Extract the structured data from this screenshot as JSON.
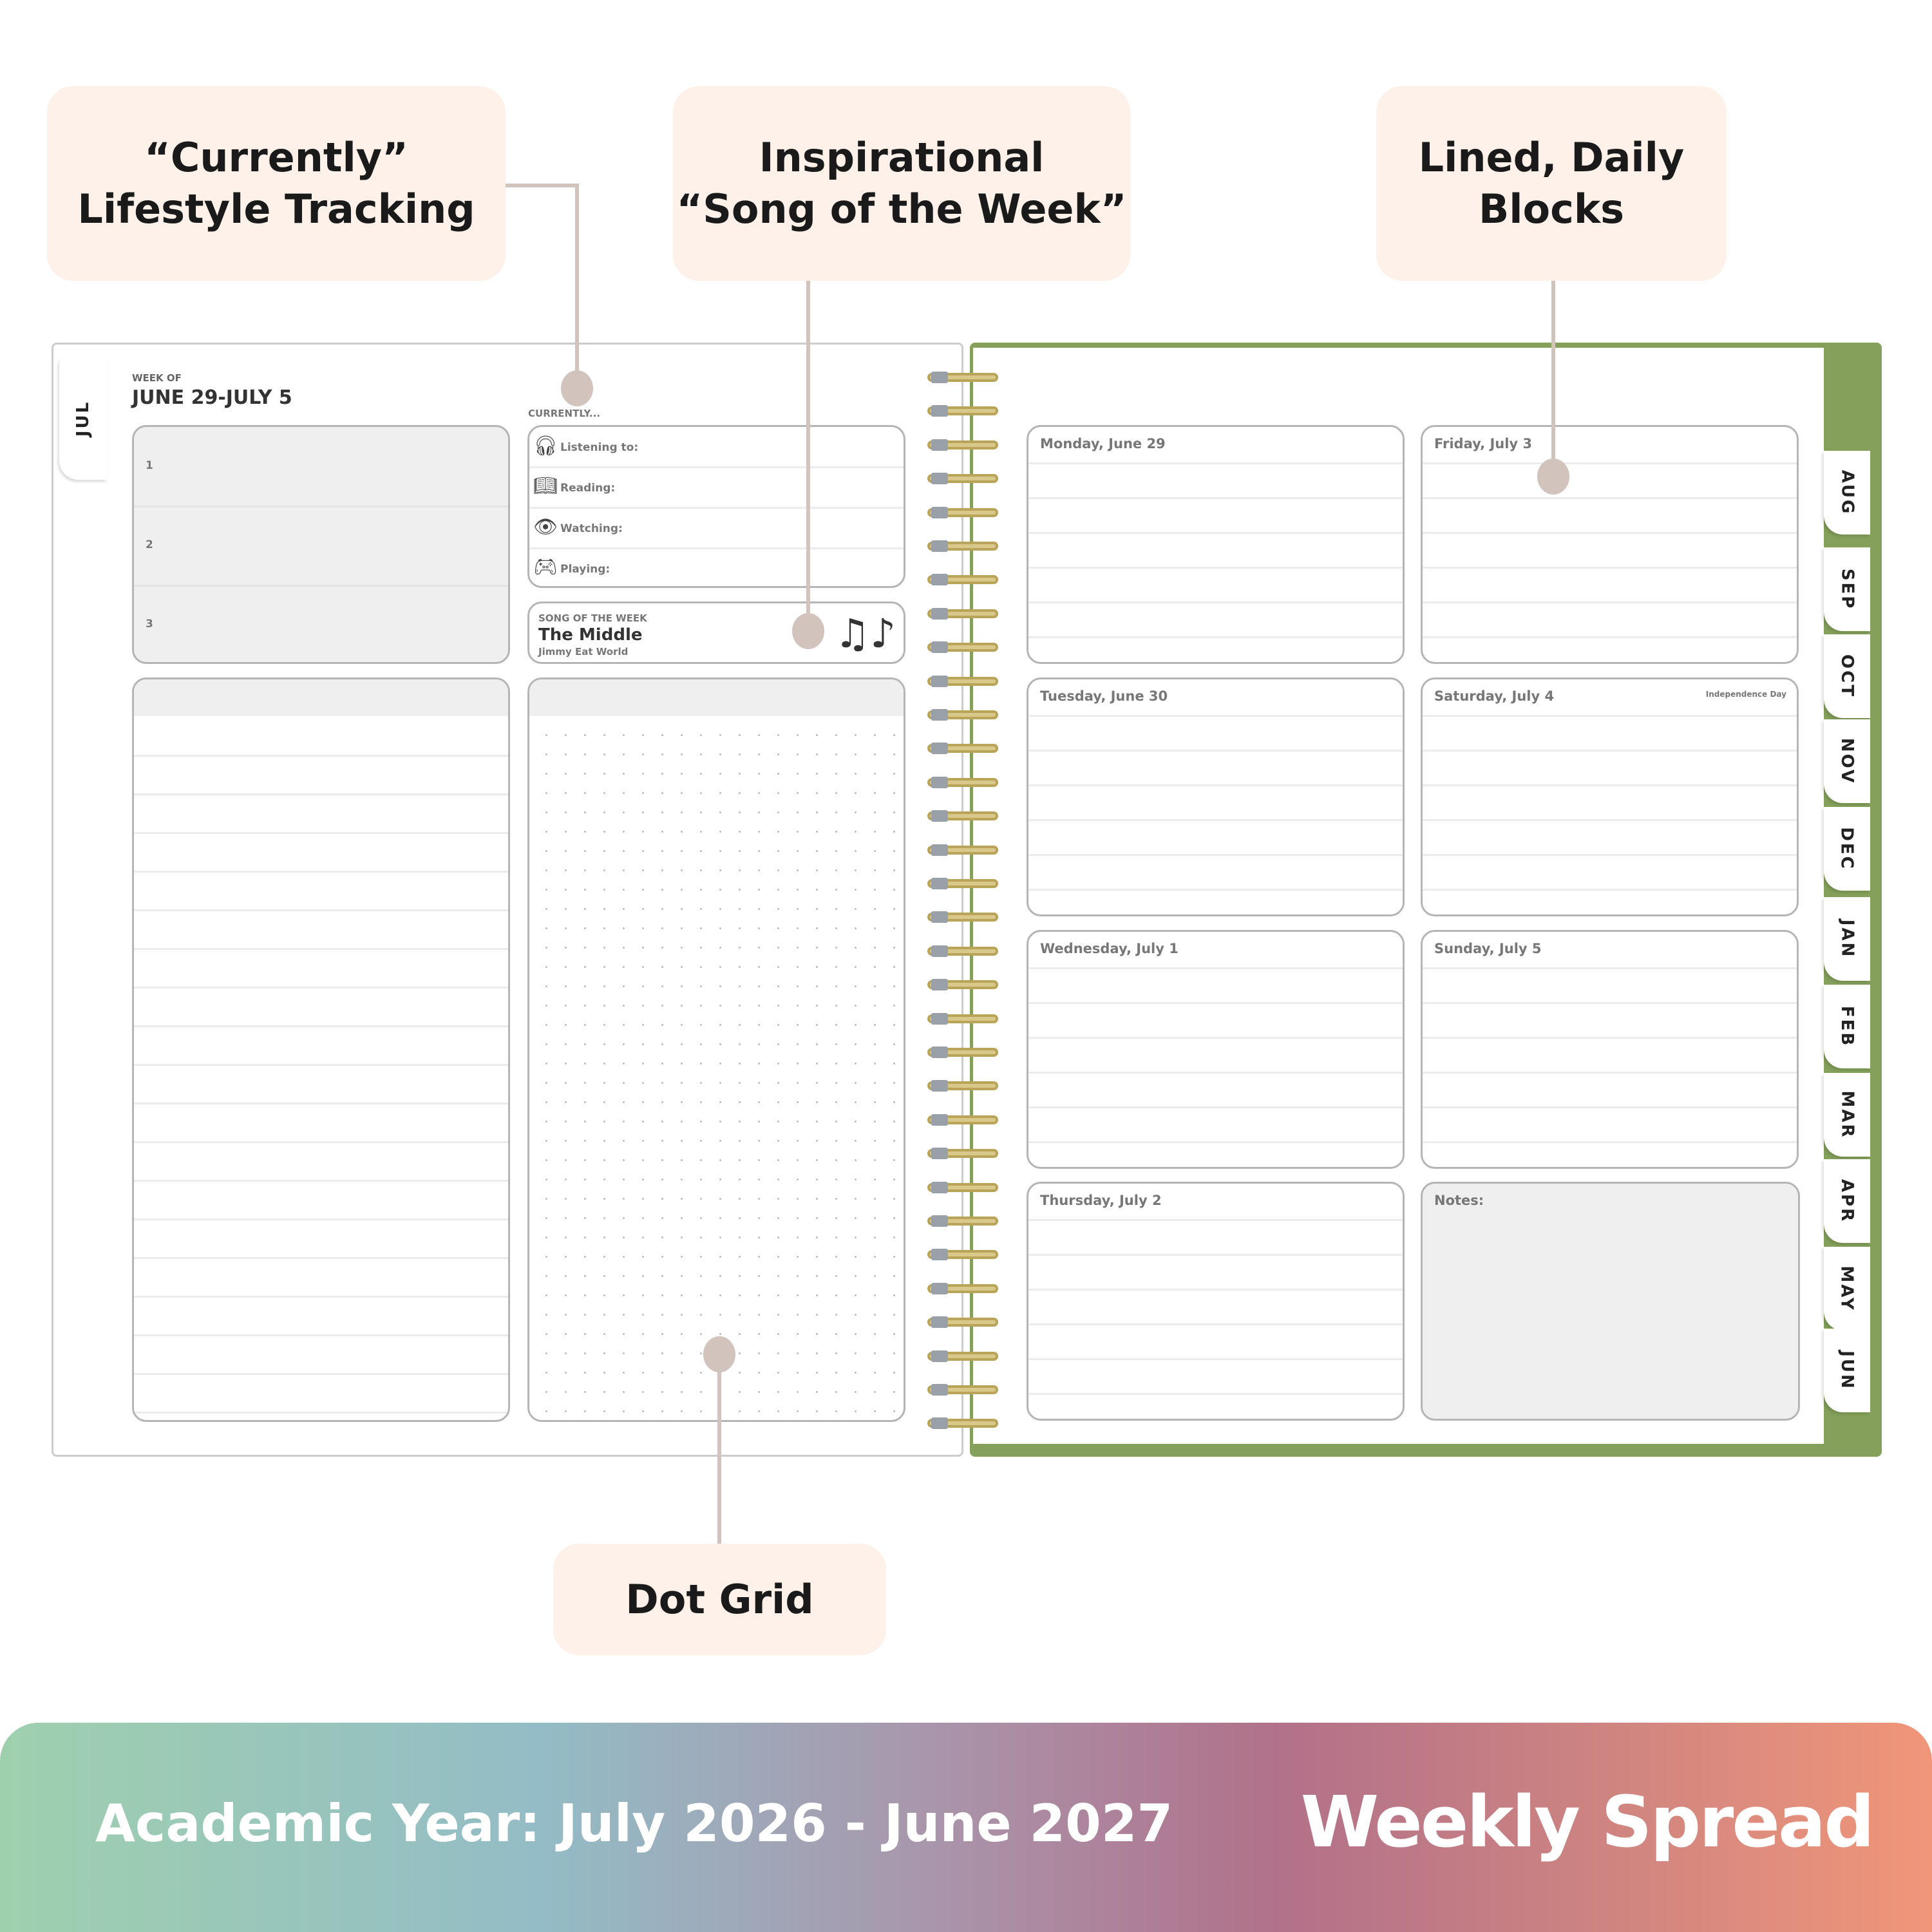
{
  "callouts": {
    "currently": "“Currently”\nLifestyle Tracking",
    "song": "Inspirational\n“Song of the Week”",
    "lined": "Lined, Daily\nBlocks",
    "dotgrid": "Dot Grid"
  },
  "left_page": {
    "tab": "JUL",
    "week_of_label": "WEEK OF",
    "week_range": "JUNE 29-JULY 5",
    "priorities": [
      "1",
      "2",
      "3"
    ],
    "currently_label": "CURRENTLY...",
    "currently_items": [
      {
        "icon": "headphones-icon",
        "label": "Listening to:"
      },
      {
        "icon": "book-icon",
        "label": "Reading:"
      },
      {
        "icon": "eye-icon",
        "label": "Watching:"
      },
      {
        "icon": "gamepad-icon",
        "label": "Playing:"
      }
    ],
    "song": {
      "label": "SONG OF THE WEEK",
      "title": "The Middle",
      "artist": "Jimmy Eat World",
      "icon": "music-notes-icon"
    }
  },
  "right_page": {
    "days": [
      {
        "title": "Monday, June 29",
        "note": ""
      },
      {
        "title": "Friday, July 3",
        "note": ""
      },
      {
        "title": "Tuesday, June 30",
        "note": ""
      },
      {
        "title": "Saturday, July 4",
        "note": "Independence Day"
      },
      {
        "title": "Wednesday, July 1",
        "note": ""
      },
      {
        "title": "Sunday, July 5",
        "note": ""
      },
      {
        "title": "Thursday, July 2",
        "note": ""
      }
    ],
    "notes_label": "Notes:",
    "tabs": [
      "AUG",
      "SEP",
      "OCT",
      "NOV",
      "DEC",
      "JAN",
      "FEB",
      "MAR",
      "APR",
      "MAY",
      "JUN"
    ]
  },
  "banner": {
    "academic_year": "Academic Year: July 2026 - June 2027",
    "title": "Weekly Spread"
  },
  "colors": {
    "cover_green": "#84a05a",
    "callout_bg": "#fdf1ea",
    "leader": "#d2c3bc",
    "spiral_gold": "#b9a45a"
  }
}
